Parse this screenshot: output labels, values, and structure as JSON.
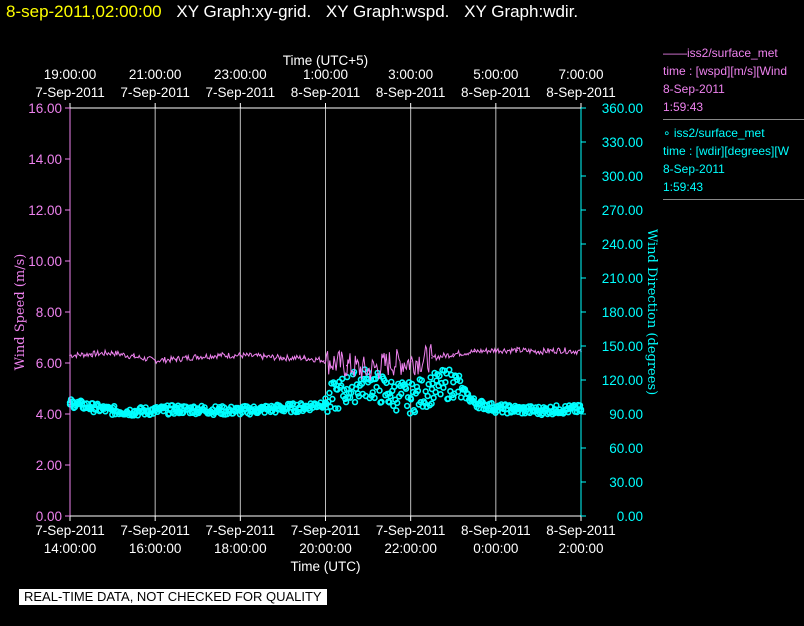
{
  "header": {
    "timestamp": "8-sep-2011,02:00:00",
    "graphs": [
      "XY Graph:xy-grid.",
      "XY Graph:wspd.",
      "XY Graph:wdir."
    ]
  },
  "legend": [
    {
      "line1": "——iss2/surface_met",
      "line2": "time : [wspd][m/s][Wind",
      "line3": "8-Sep-2011",
      "line4": "1:59:43",
      "color": "#ee82ee"
    },
    {
      "line1": "∘ iss2/surface_met",
      "line2": "time : [wdir][degrees][W",
      "line3": "8-Sep-2011",
      "line4": "1:59:43",
      "color": "#00ffff"
    }
  ],
  "banner": "REAL-TIME DATA, NOT CHECKED FOR QUALITY",
  "chart_data": {
    "type": "line",
    "x_axis_bottom": {
      "label": "Time (UTC)",
      "ticks": [
        {
          "date": "7-Sep-2011",
          "time": "14:00:00"
        },
        {
          "date": "7-Sep-2011",
          "time": "16:00:00"
        },
        {
          "date": "7-Sep-2011",
          "time": "18:00:00"
        },
        {
          "date": "7-Sep-2011",
          "time": "20:00:00"
        },
        {
          "date": "7-Sep-2011",
          "time": "22:00:00"
        },
        {
          "date": "8-Sep-2011",
          "time": "0:00:00"
        },
        {
          "date": "8-Sep-2011",
          "time": "2:00:00"
        }
      ]
    },
    "x_axis_top": {
      "label": "Time (UTC+5)",
      "ticks": [
        {
          "date": "7-Sep-2011",
          "time": "19:00:00"
        },
        {
          "date": "7-Sep-2011",
          "time": "21:00:00"
        },
        {
          "date": "7-Sep-2011",
          "time": "23:00:00"
        },
        {
          "date": "8-Sep-2011",
          "time": "1:00:00"
        },
        {
          "date": "8-Sep-2011",
          "time": "3:00:00"
        },
        {
          "date": "8-Sep-2011",
          "time": "5:00:00"
        },
        {
          "date": "8-Sep-2011",
          "time": "7:00:00"
        }
      ]
    },
    "x_range_utc_hours": [
      14,
      26
    ],
    "y_left": {
      "label": "Wind Speed (m/s)",
      "range": [
        0,
        16
      ],
      "ticks": [
        "0.00",
        "2.00",
        "4.00",
        "6.00",
        "8.00",
        "10.00",
        "12.00",
        "14.00",
        "16.00"
      ],
      "color": "#ee82ee"
    },
    "y_right": {
      "label": "Wind Direction (degrees)",
      "range": [
        0,
        360
      ],
      "ticks": [
        "0.00",
        "30.00",
        "60.00",
        "90.00",
        "120.00",
        "150.00",
        "180.00",
        "210.00",
        "240.00",
        "270.00",
        "300.00",
        "330.00",
        "360.00"
      ],
      "color": "#00ffff"
    },
    "grid": true,
    "series": [
      {
        "name": "iss2/surface_met time : [wspd][m/s]",
        "axis": "left",
        "style": "line",
        "color": "#ee82ee",
        "x_hours_utc": [
          14.0,
          14.5,
          15.0,
          15.5,
          16.0,
          16.5,
          17.0,
          17.5,
          18.0,
          18.5,
          19.0,
          19.5,
          20.0,
          20.5,
          21.0,
          21.5,
          22.0,
          22.5,
          23.0,
          23.5,
          24.0,
          24.5,
          25.0,
          25.5,
          26.0
        ],
        "values": [
          6.3,
          6.35,
          6.4,
          6.25,
          6.1,
          6.15,
          6.25,
          6.3,
          6.3,
          6.25,
          6.2,
          6.2,
          6.1,
          5.9,
          5.7,
          6.0,
          6.05,
          6.2,
          6.35,
          6.45,
          6.5,
          6.5,
          6.45,
          6.5,
          6.45
        ]
      },
      {
        "name": "iss2/surface_met time : [wdir][degrees]",
        "axis": "right",
        "style": "scatter",
        "color": "#00ffff",
        "x_hours_utc": [
          14.0,
          14.5,
          15.0,
          15.5,
          16.0,
          16.5,
          17.0,
          17.5,
          18.0,
          18.5,
          19.0,
          19.5,
          20.0,
          20.5,
          21.0,
          21.5,
          22.0,
          22.5,
          23.0,
          23.5,
          24.0,
          24.5,
          25.0,
          25.5,
          26.0
        ],
        "values": [
          100,
          96,
          93,
          92,
          93,
          94,
          94,
          93,
          93,
          94,
          95,
          96,
          100,
          112,
          118,
          108,
          104,
          112,
          118,
          100,
          95,
          94,
          93,
          94,
          94
        ]
      }
    ]
  }
}
